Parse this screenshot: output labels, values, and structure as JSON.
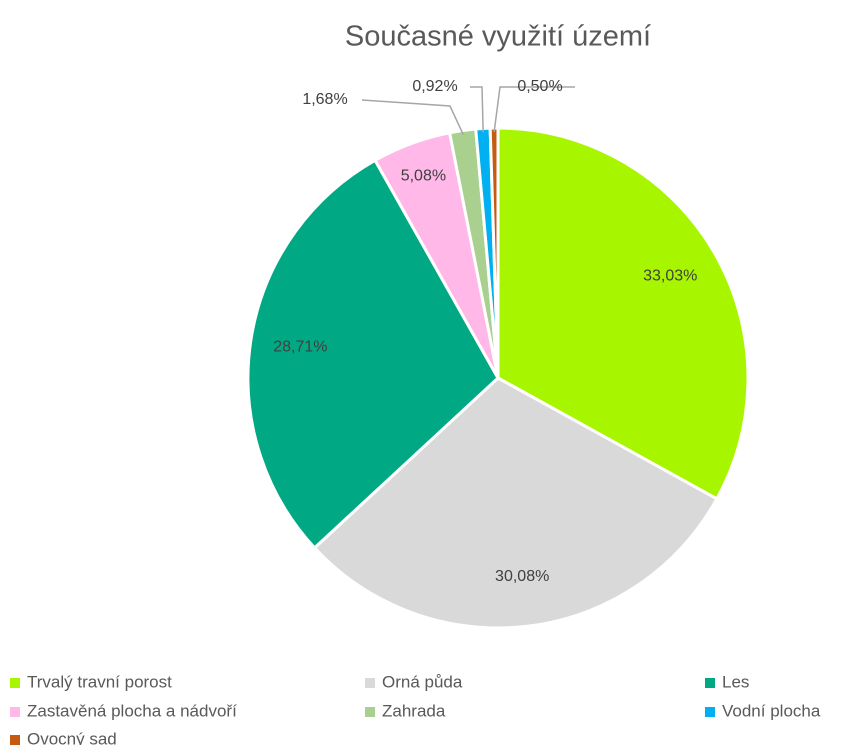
{
  "chart_data": {
    "type": "pie",
    "title": "Současné využití území",
    "categories": [
      "Trvalý travní porost",
      "Orná půda",
      "Les",
      "Zastavěná plocha a nádvoří",
      "Zahrada",
      "Vodní plocha",
      "Ovocný sad"
    ],
    "values": [
      33.03,
      30.08,
      28.71,
      5.08,
      1.68,
      0.92,
      0.5
    ],
    "value_labels": [
      "33,03%",
      "30,08%",
      "28,71%",
      "5,08%",
      "1,68%",
      "0,92%",
      "0,50%"
    ],
    "colors": [
      "#a8f500",
      "#d9d9d9",
      "#00a883",
      "#ffb8e8",
      "#a9d08e",
      "#00b0f0",
      "#c55a11"
    ],
    "legend": "bottom"
  }
}
